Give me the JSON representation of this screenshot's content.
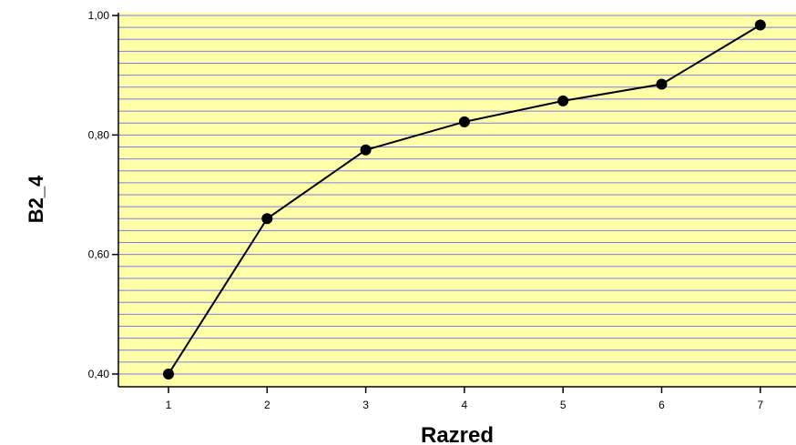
{
  "chart_data": {
    "type": "line",
    "xlabel": "Razred",
    "ylabel": "B2_4",
    "categories": [
      "1",
      "2",
      "3",
      "4",
      "5",
      "6",
      "7"
    ],
    "series": [
      {
        "values": [
          0.4,
          0.66,
          0.775,
          0.822,
          0.857,
          0.885,
          0.984
        ]
      }
    ],
    "ylim": [
      0.38,
      1.0
    ],
    "yticks": [
      0.4,
      0.6,
      0.8,
      1.0
    ],
    "ytick_labels": [
      "0,40",
      "0,60",
      "0,80",
      "1,00"
    ],
    "minor_grid_step": 0.02,
    "grid": "horizontal",
    "colors": {
      "plot_background": "#FFFFA8",
      "grid_line": "#7A7AF0",
      "line": "#000000",
      "marker": "#000000"
    }
  }
}
